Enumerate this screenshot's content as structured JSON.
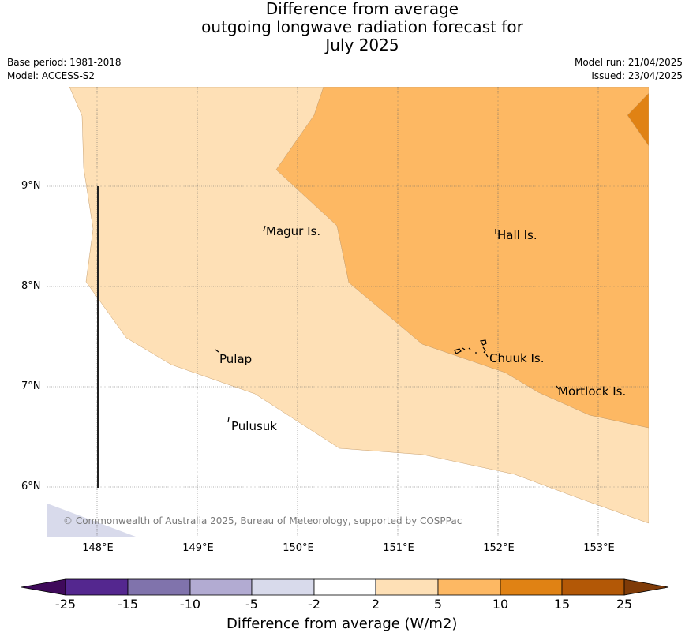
{
  "title": {
    "line1": "Difference from average",
    "line2": "outgoing longwave radiation forecast for",
    "line3": "July 2025"
  },
  "meta": {
    "base_period": "Base period: 1981-2018",
    "model": "Model: ACCESS-S2",
    "model_run": "Model run: 21/04/2025",
    "issued": "Issued: 23/04/2025"
  },
  "map": {
    "lat_labels": [
      "9°N",
      "8°N",
      "7°N",
      "6°N"
    ],
    "lon_labels": [
      "148°E",
      "149°E",
      "150°E",
      "151°E",
      "152°E",
      "153°E"
    ],
    "places": [
      "Magur Is.",
      "Hall Is.",
      "Pulap",
      "Chuuk Is.",
      "Mortlock Is.",
      "Pulusuk"
    ],
    "copyright": "© Commonwealth of Australia 2025, Bureau of Meteorology, supported by COSPPac",
    "category_colors": {
      "neg25_neg15": "#54278f",
      "neg15_neg10": "#8073ac",
      "neg10_neg5": "#b2abd2",
      "neg5_neg2": "#d8daeb",
      "neg2_2": "#ffffff",
      "2_5": "#fee0b6",
      "5_10": "#fdb863",
      "10_15": "#e08214",
      "15_25": "#b35806"
    }
  },
  "colorbar": {
    "ticks": [
      "-25",
      "-15",
      "-10",
      "-5",
      "-2",
      "2",
      "5",
      "10",
      "15",
      "25"
    ],
    "label": "Difference from average (W/m2)",
    "colors": [
      "#3f0a5a",
      "#54278f",
      "#8073ac",
      "#b2abd2",
      "#d8daeb",
      "#ffffff",
      "#fee0b6",
      "#fdb863",
      "#e08214",
      "#b35806",
      "#7f3b08"
    ]
  }
}
